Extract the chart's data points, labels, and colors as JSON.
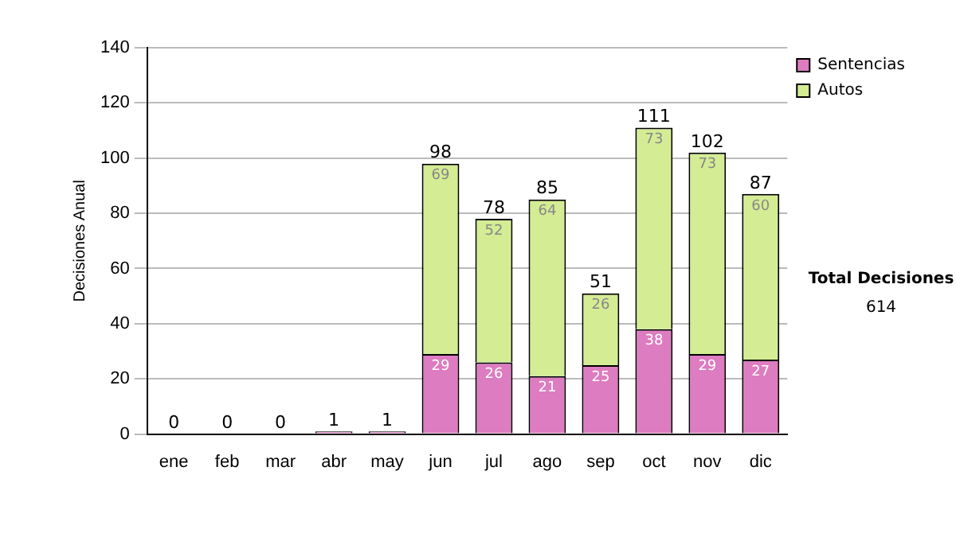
{
  "chart_data": {
    "type": "bar",
    "stacked": true,
    "ylabel": "Decisiones Anual",
    "categories": [
      "ene",
      "feb",
      "mar",
      "abr",
      "may",
      "jun",
      "jul",
      "ago",
      "sep",
      "oct",
      "nov",
      "dic"
    ],
    "series": [
      {
        "name": "Sentencias",
        "color": "#dd7cc0",
        "values": [
          0,
          0,
          0,
          1,
          1,
          29,
          26,
          21,
          25,
          38,
          29,
          27
        ],
        "value_labels": [
          null,
          null,
          null,
          null,
          null,
          "29",
          "26",
          "21",
          "25",
          "38",
          "29",
          "27"
        ]
      },
      {
        "name": "Autos",
        "color": "#d4ec94",
        "values": [
          0,
          0,
          0,
          0,
          0,
          69,
          52,
          64,
          26,
          73,
          73,
          60
        ],
        "value_labels": [
          null,
          null,
          null,
          null,
          null,
          "69",
          "52",
          "64",
          "26",
          "73",
          "73",
          "60"
        ]
      }
    ],
    "totals": [
      "0",
      "0",
      "0",
      "1",
      "1",
      "98",
      "78",
      "85",
      "51",
      "111",
      "102",
      "87"
    ],
    "ylim": [
      0,
      140
    ],
    "yticks": [
      0,
      20,
      40,
      60,
      80,
      100,
      120,
      140
    ],
    "grid": "y",
    "legend": "right",
    "annotations": [
      "Total Decisiones",
      "614"
    ]
  }
}
